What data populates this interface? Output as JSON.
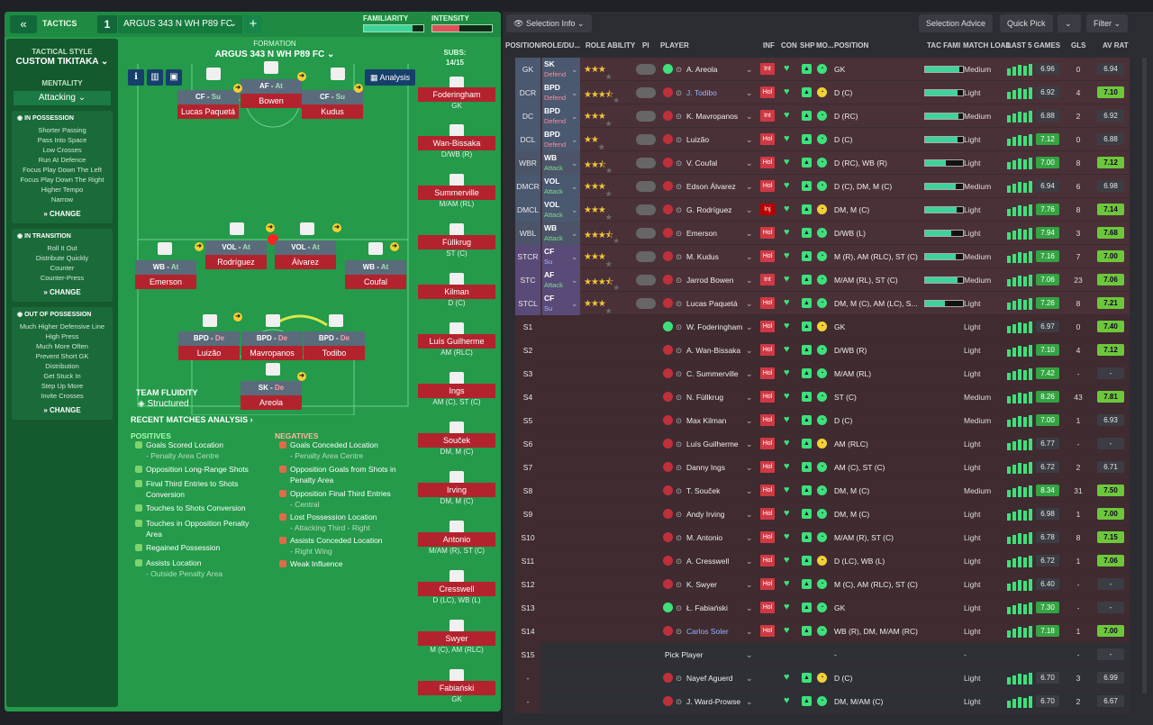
{
  "header": {
    "back": "«",
    "tactics_label": "TACTICS",
    "slot": "1",
    "tactic_name": "ARGUS 343 N WH P89 FC",
    "plus": "+",
    "familiarity": "FAMILIARITY",
    "intensity": "INTENSITY",
    "familiarity_level": 0.82,
    "intensity_level": 0.45
  },
  "sidebar": {
    "style_label": "TACTICAL STYLE",
    "style_value": "CUSTOM TIKITAKA",
    "mentality_label": "MENTALITY",
    "mentality_value": "Attacking",
    "in_possession": {
      "title": "IN POSSESSION",
      "items": [
        "Shorter Passing",
        "Pass Into Space",
        "Low Crosses",
        "Run At Defence",
        "Focus Play Down The Left",
        "Focus Play Down The Right",
        "Higher Tempo",
        "Narrow"
      ],
      "change": "CHANGE"
    },
    "in_transition": {
      "title": "IN TRANSITION",
      "items": [
        "Roll It Out",
        "Distribute Quickly",
        "Counter",
        "Counter-Press"
      ],
      "change": "CHANGE"
    },
    "out_of_possession": {
      "title": "OUT OF POSSESSION",
      "items": [
        "Much Higher Defensive Line",
        "High Press",
        "Much More Often",
        "Prevent Short GK",
        "Distribution",
        "Get Stuck In",
        "Step Up More",
        "Invite Crosses"
      ],
      "change": "CHANGE"
    }
  },
  "formation": {
    "label": "FORMATION",
    "name": "ARGUS 343 N WH P89 FC",
    "subs_label": "SUBS:",
    "subs_value": "14/15",
    "analysis": "Analysis",
    "players": [
      {
        "role": "CF",
        "duty": "Su",
        "name": "Lucas Paquetá"
      },
      {
        "role": "AF",
        "duty": "At",
        "name": "Bowen"
      },
      {
        "role": "CF",
        "duty": "Su",
        "name": "Kudus"
      },
      {
        "role": "VOL",
        "duty": "At",
        "name": "Rodríguez"
      },
      {
        "role": "VOL",
        "duty": "At",
        "name": "Álvarez"
      },
      {
        "role": "WB",
        "duty": "At",
        "name": "Emerson"
      },
      {
        "role": "WB",
        "duty": "At",
        "name": "Coufal"
      },
      {
        "role": "BPD",
        "duty": "De",
        "name": "Luizão"
      },
      {
        "role": "BPD",
        "duty": "De",
        "name": "Mavropanos"
      },
      {
        "role": "BPD",
        "duty": "De",
        "name": "Todibo"
      },
      {
        "role": "SK",
        "duty": "De",
        "name": "Areola"
      }
    ],
    "fluidity_label": "TEAM FLUIDITY",
    "fluidity_value": "Structured"
  },
  "subs": [
    {
      "name": "Foderingham",
      "pos": "GK"
    },
    {
      "name": "Wan-Bissaka",
      "pos": "D/WB (R)"
    },
    {
      "name": "Summerville",
      "pos": "M/AM (RL)"
    },
    {
      "name": "Füllkrug",
      "pos": "ST (C)"
    },
    {
      "name": "Kilman",
      "pos": "D (C)"
    },
    {
      "name": "Luís Guilherme",
      "pos": "AM (RLC)"
    },
    {
      "name": "Ings",
      "pos": "AM (C), ST (C)"
    },
    {
      "name": "Souček",
      "pos": "DM, M (C)"
    },
    {
      "name": "Irving",
      "pos": "DM, M (C)"
    },
    {
      "name": "Antonio",
      "pos": "M/AM (R), ST (C)"
    },
    {
      "name": "Cresswell",
      "pos": "D (LC), WB (L)"
    },
    {
      "name": "Swyer",
      "pos": "M (C), AM (RLC)"
    },
    {
      "name": "Fabiański",
      "pos": "GK"
    }
  ],
  "analysis": {
    "title": "RECENT MATCHES ANALYSIS ›",
    "positives_label": "POSITIVES",
    "negatives_label": "NEGATIVES",
    "positives": [
      {
        "t": "Goals Scored Location",
        "s": "- Penalty Area Centre"
      },
      {
        "t": "Opposition Long-Range Shots",
        "s": ""
      },
      {
        "t": "Final Third Entries to Shots Conversion",
        "s": ""
      },
      {
        "t": "Touches to Shots Conversion",
        "s": ""
      },
      {
        "t": "Touches in Opposition Penalty Area",
        "s": ""
      },
      {
        "t": "Regained Possession",
        "s": ""
      },
      {
        "t": "Assists Location",
        "s": "- Outside Penalty Area"
      }
    ],
    "negatives": [
      {
        "t": "Goals Conceded Location",
        "s": "- Penalty Area Centre"
      },
      {
        "t": "Opposition Goals from Shots in Penalty Area",
        "s": ""
      },
      {
        "t": "Opposition Final Third Entries",
        "s": "- Central"
      },
      {
        "t": "Lost Possession Location",
        "s": "- Attacking Third - Right"
      },
      {
        "t": "Assists Conceded Location",
        "s": "- Right Wing"
      },
      {
        "t": "Weak Influence",
        "s": ""
      }
    ]
  },
  "right": {
    "selection_info": "Selection Info",
    "selection_advice": "Selection Advice",
    "quick_pick": "Quick Pick",
    "filter": "Filter",
    "columns": [
      "POSITION/ROLE/DU...",
      "ROLE ABILITY",
      "PI",
      "PLAYER",
      "INF",
      "CON",
      "SHP",
      "MO...",
      "POSITION",
      "TAC FAMI",
      "MATCH LOAD",
      "LAST 5 GAMES",
      "GLS",
      "AV RAT"
    ],
    "rows": [
      {
        "p": "GK",
        "r": "SK",
        "d": "Defend",
        "st": 3,
        "n": "A. Areola",
        "inf": "Int",
        "pos": "GK",
        "load": "Medium",
        "l5": "6.96",
        "gls": "0",
        "av": "6.94"
      },
      {
        "p": "DCR",
        "r": "BPD",
        "d": "Defend",
        "st": 3.5,
        "n": "J. Todibo",
        "inf": "Hol",
        "pos": "D (C)",
        "load": "Light",
        "l5": "6.92",
        "gls": "4",
        "av": "7.10"
      },
      {
        "p": "DC",
        "r": "BPD",
        "d": "Defend",
        "st": 3,
        "n": "K. Mavropanos",
        "inf": "Int",
        "pos": "D (RC)",
        "load": "Medium",
        "l5": "6.88",
        "gls": "2",
        "av": "6.92"
      },
      {
        "p": "DCL",
        "r": "BPD",
        "d": "Defend",
        "st": 2,
        "n": "Luizão",
        "inf": "Hol",
        "pos": "D (C)",
        "load": "Light",
        "l5": "7.12",
        "gls": "0",
        "av": "6.88"
      },
      {
        "p": "WBR",
        "r": "WB",
        "d": "Attack",
        "st": 2.5,
        "n": "V. Coufal",
        "inf": "Hol",
        "pos": "D (RC), WB (R)",
        "load": "Light",
        "l5": "7.00",
        "gls": "8",
        "av": "7.12"
      },
      {
        "p": "DMCR",
        "r": "VOL",
        "d": "Attack",
        "st": 3,
        "n": "Edson Álvarez",
        "inf": "Hol",
        "pos": "D (C), DM, M (C)",
        "load": "Medium",
        "l5": "6.94",
        "gls": "6",
        "av": "6.98"
      },
      {
        "p": "DMCL",
        "r": "VOL",
        "d": "Attack",
        "st": 3,
        "n": "G. Rodríguez",
        "inf": "Inj",
        "pos": "DM, M (C)",
        "load": "Light",
        "l5": "7.76",
        "gls": "8",
        "av": "7.14"
      },
      {
        "p": "WBL",
        "r": "WB",
        "d": "Attack",
        "st": 3.5,
        "n": "Emerson",
        "inf": "Hol",
        "pos": "D/WB (L)",
        "load": "Light",
        "l5": "7.94",
        "gls": "3",
        "av": "7.68"
      },
      {
        "p": "STCR",
        "r": "CF",
        "d": "Su",
        "st": 3,
        "n": "M. Kudus",
        "inf": "Hol",
        "pos": "M (R), AM (RLC), ST (C)",
        "load": "Medium",
        "l5": "7.16",
        "gls": "7",
        "av": "7.00"
      },
      {
        "p": "STC",
        "r": "AF",
        "d": "Attack",
        "st": 3.5,
        "n": "Jarrod Bowen",
        "inf": "Int",
        "pos": "M/AM (RL), ST (C)",
        "load": "Medium",
        "l5": "7.06",
        "gls": "23",
        "av": "7.06"
      },
      {
        "p": "STCL",
        "r": "CF",
        "d": "Su",
        "st": 3,
        "n": "Lucas Paquetá",
        "inf": "Hol",
        "pos": "DM, M (C), AM (LC), S...",
        "load": "Light",
        "l5": "7.26",
        "gls": "8",
        "av": "7.21"
      },
      {
        "p": "S1",
        "n": "W. Foderingham",
        "inf": "Hol",
        "pos": "GK",
        "load": "Light",
        "l5": "6.97",
        "gls": "0",
        "av": "7.40"
      },
      {
        "p": "S2",
        "n": "A. Wan-Bissaka",
        "inf": "Hol",
        "pos": "D/WB (R)",
        "load": "Light",
        "l5": "7.10",
        "gls": "4",
        "av": "7.12"
      },
      {
        "p": "S3",
        "n": "C. Summerville",
        "inf": "Hol",
        "pos": "M/AM (RL)",
        "load": "Light",
        "l5": "7.42",
        "gls": "-",
        "av": "-"
      },
      {
        "p": "S4",
        "n": "N. Füllkrug",
        "inf": "Hol",
        "pos": "ST (C)",
        "load": "Medium",
        "l5": "8.26",
        "gls": "43",
        "av": "7.81"
      },
      {
        "p": "S5",
        "n": "Max Kilman",
        "inf": "Hol",
        "pos": "D (C)",
        "load": "Medium",
        "l5": "7.00",
        "gls": "1",
        "av": "6.93"
      },
      {
        "p": "S6",
        "n": "Luís Guilherme",
        "inf": "Hol",
        "pos": "AM (RLC)",
        "load": "Light",
        "l5": "6.77",
        "gls": "-",
        "av": "-"
      },
      {
        "p": "S7",
        "n": "Danny Ings",
        "inf": "Hol",
        "pos": "AM (C), ST (C)",
        "load": "Light",
        "l5": "6.72",
        "gls": "2",
        "av": "6.71"
      },
      {
        "p": "S8",
        "n": "T. Souček",
        "inf": "Hol",
        "pos": "DM, M (C)",
        "load": "Medium",
        "l5": "8.34",
        "gls": "31",
        "av": "7.50"
      },
      {
        "p": "S9",
        "n": "Andy Irving",
        "inf": "Hol",
        "pos": "DM, M (C)",
        "load": "Light",
        "l5": "6.98",
        "gls": "1",
        "av": "7.00"
      },
      {
        "p": "S10",
        "n": "M. Antonio",
        "inf": "Hol",
        "pos": "M/AM (R), ST (C)",
        "load": "Light",
        "l5": "6.78",
        "gls": "8",
        "av": "7.15"
      },
      {
        "p": "S11",
        "n": "A. Cresswell",
        "inf": "Hol",
        "pos": "D (LC), WB (L)",
        "load": "Light",
        "l5": "6.72",
        "gls": "1",
        "av": "7.06"
      },
      {
        "p": "S12",
        "n": "K. Swyer",
        "inf": "Hol",
        "pos": "M (C), AM (RLC), ST (C)",
        "load": "Light",
        "l5": "6.40",
        "gls": "-",
        "av": "-"
      },
      {
        "p": "S13",
        "n": "Ł. Fabiański",
        "inf": "Hol",
        "pos": "GK",
        "load": "Light",
        "l5": "7.30",
        "gls": "-",
        "av": "-"
      },
      {
        "p": "S14",
        "n": "Carlos Soler",
        "inf": "Hol",
        "pos": "WB (R), DM, M/AM (RC)",
        "load": "Light",
        "l5": "7.18",
        "gls": "1",
        "av": "7.00"
      },
      {
        "p": "S15",
        "n": "Pick Player",
        "inf": "",
        "pos": "-",
        "load": "-",
        "l5": "",
        "gls": "-",
        "av": "-"
      },
      {
        "p": "-",
        "n": "Nayef Aguerd",
        "inf": "",
        "pos": "D (C)",
        "load": "Light",
        "l5": "6.70",
        "gls": "3",
        "av": "6.99"
      },
      {
        "p": "-",
        "n": "J. Ward-Prowse",
        "inf": "",
        "pos": "DM, M/AM (C)",
        "load": "Light",
        "l5": "6.70",
        "gls": "2",
        "av": "6.67"
      }
    ]
  },
  "colors": {
    "pitch": "#249a4a",
    "sidebar": "#15592e",
    "chip": "#b3232e",
    "good": "#3ee07b"
  }
}
